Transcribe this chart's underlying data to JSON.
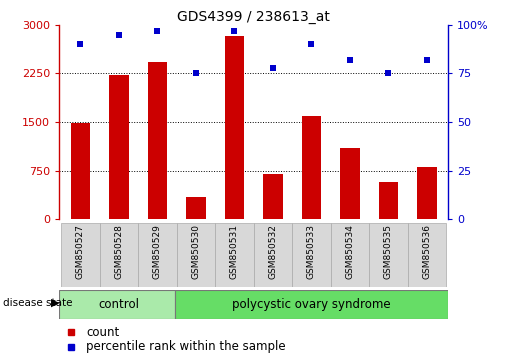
{
  "title": "GDS4399 / 238613_at",
  "samples": [
    "GSM850527",
    "GSM850528",
    "GSM850529",
    "GSM850530",
    "GSM850531",
    "GSM850532",
    "GSM850533",
    "GSM850534",
    "GSM850535",
    "GSM850536"
  ],
  "counts": [
    1480,
    2230,
    2420,
    350,
    2820,
    700,
    1600,
    1100,
    580,
    810
  ],
  "percentiles": [
    90,
    95,
    97,
    75,
    97,
    78,
    90,
    82,
    75,
    82
  ],
  "bar_color": "#cc0000",
  "dot_color": "#0000cc",
  "ylim_left": [
    0,
    3000
  ],
  "ylim_right": [
    0,
    100
  ],
  "yticks_left": [
    0,
    750,
    1500,
    2250,
    3000
  ],
  "yticks_right": [
    0,
    25,
    50,
    75,
    100
  ],
  "grid_values": [
    750,
    1500,
    2250
  ],
  "control_samples": 3,
  "control_label": "control",
  "disease_label": "polycystic ovary syndrome",
  "disease_state_label": "disease state",
  "legend_count_label": "count",
  "legend_pct_label": "percentile rank within the sample",
  "control_color": "#aaeaaa",
  "disease_color": "#66dd66",
  "bar_width": 0.5,
  "sample_box_facecolor": "#d8d8d8",
  "sample_box_edgecolor": "#aaaaaa",
  "bg_color": "#ffffff"
}
